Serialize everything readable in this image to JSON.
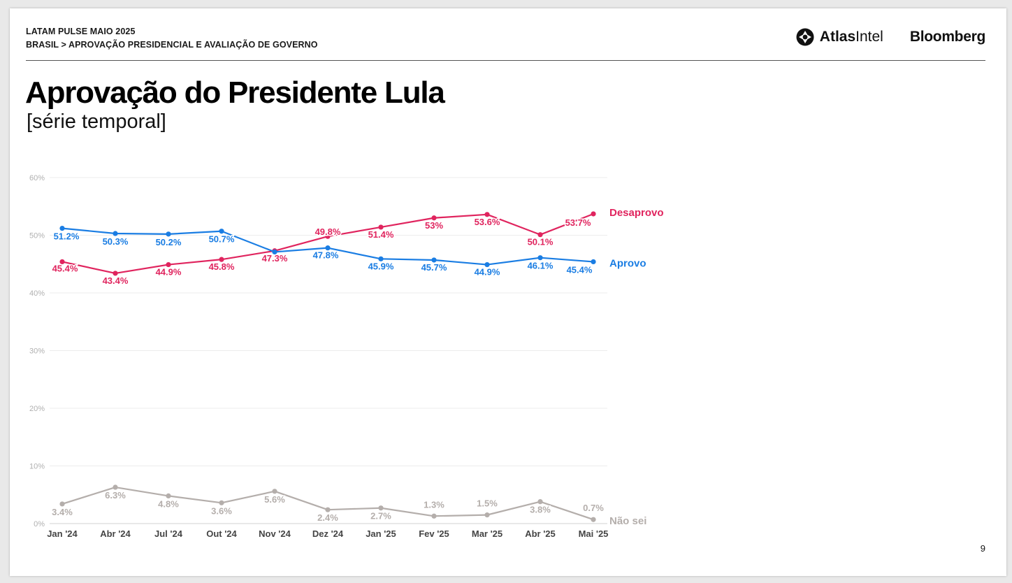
{
  "header": {
    "line1": "LATAM PULSE MAIO 2025",
    "line2": "BRASIL > APROVAÇÃO PRESIDENCIAL E AVALIAÇÃO DE GOVERNO"
  },
  "logos": {
    "atlas_bold": "Atlas",
    "atlas_light": "Intel",
    "bloomberg": "Bloomberg"
  },
  "title": "Aprovação do Presidente Lula",
  "subtitle": "[série temporal]",
  "page_number": "9",
  "colors": {
    "desaprovo": "#e0245e",
    "aprovo": "#1a7de3",
    "nao_sei": "#b4aeab",
    "grid": "#ececec",
    "axis_text": "#b0b0b0",
    "tick_text": "#444444"
  },
  "chart_data": {
    "type": "line",
    "title": "Aprovação do Presidente Lula",
    "x": [
      "Jan '24",
      "Abr '24",
      "Jul '24",
      "Out '24",
      "Nov '24",
      "Dez '24",
      "Jan '25",
      "Fev '25",
      "Mar '25",
      "Abr '25",
      "Mai '25"
    ],
    "ylim": [
      0,
      60
    ],
    "yticks": [
      0,
      10,
      20,
      30,
      40,
      50,
      60
    ],
    "ytick_labels": [
      "0%",
      "10%",
      "20%",
      "30%",
      "40%",
      "50%",
      "60%"
    ],
    "grid": true,
    "series": [
      {
        "key": "desaprovo",
        "name": "Desaprovo",
        "values": [
          45.4,
          43.4,
          44.9,
          45.8,
          47.3,
          49.8,
          51.4,
          53.0,
          53.6,
          50.1,
          53.7
        ],
        "labels": [
          "45.4%",
          "43.4%",
          "44.9%",
          "45.8%",
          "47.3%",
          "49.8%",
          "51.4%",
          "53%",
          "53.6%",
          "50.1%",
          "53.7%"
        ]
      },
      {
        "key": "aprovo",
        "name": "Aprovo",
        "values": [
          51.2,
          50.3,
          50.2,
          50.7,
          47.1,
          47.8,
          45.9,
          45.7,
          44.9,
          46.1,
          45.4
        ],
        "labels": [
          "51.2%",
          "50.3%",
          "50.2%",
          "50.7%",
          "",
          "47.8%",
          "45.9%",
          "45.7%",
          "44.9%",
          "46.1%",
          "45.4%"
        ]
      },
      {
        "key": "nao_sei",
        "name": "Não sei",
        "values": [
          3.4,
          6.3,
          4.8,
          3.6,
          5.6,
          2.4,
          2.7,
          1.3,
          1.5,
          3.8,
          0.7
        ],
        "labels": [
          "3.4%",
          "6.3%",
          "4.8%",
          "3.6%",
          "5.6%",
          "2.4%",
          "2.7%",
          "1.3%",
          "1.5%",
          "3.8%",
          "0.7%"
        ]
      }
    ]
  }
}
